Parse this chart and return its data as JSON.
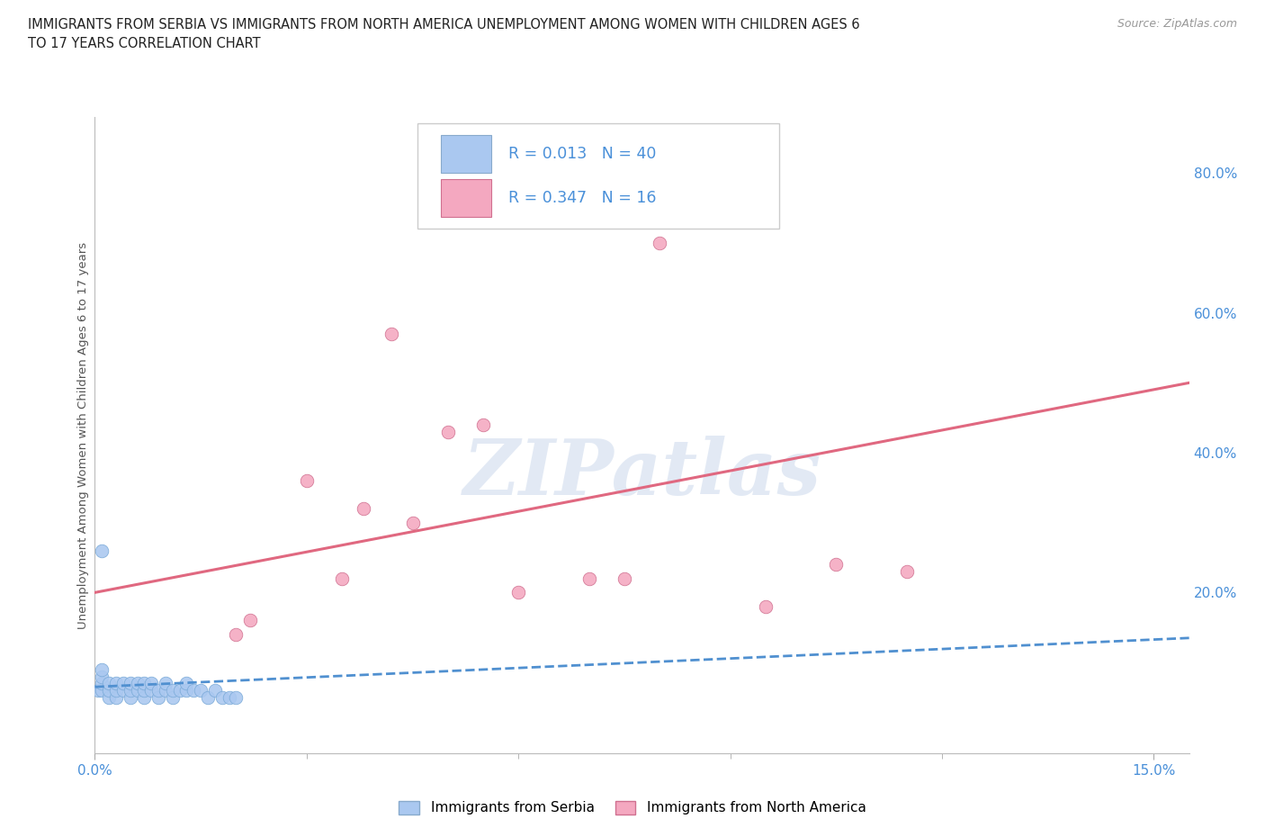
{
  "title_line1": "IMMIGRANTS FROM SERBIA VS IMMIGRANTS FROM NORTH AMERICA UNEMPLOYMENT AMONG WOMEN WITH CHILDREN AGES 6",
  "title_line2": "TO 17 YEARS CORRELATION CHART",
  "source": "Source: ZipAtlas.com",
  "ylabel": "Unemployment Among Women with Children Ages 6 to 17 years",
  "R_serbia": 0.013,
  "N_serbia": 40,
  "R_north_america": 0.347,
  "N_north_america": 16,
  "color_serbia": "#aac8f0",
  "color_north_america": "#f4a8c0",
  "color_trendline_serbia": "#5090d0",
  "color_trendline_north_america": "#e06880",
  "color_axis_text": "#4a90d9",
  "color_grid": "#c8d4e8",
  "xlim_min": 0.0,
  "xlim_max": 0.155,
  "ylim_min": -0.03,
  "ylim_max": 0.88,
  "yticks_right": [
    0.2,
    0.4,
    0.6,
    0.8
  ],
  "ytick_right_labels": [
    "20.0%",
    "40.0%",
    "60.0%",
    "80.0%"
  ],
  "watermark": "ZIPatlas",
  "background_color": "#ffffff",
  "serbia_x": [
    0.0005,
    0.001,
    0.001,
    0.001,
    0.001,
    0.002,
    0.002,
    0.002,
    0.003,
    0.003,
    0.003,
    0.004,
    0.004,
    0.005,
    0.005,
    0.005,
    0.006,
    0.006,
    0.007,
    0.007,
    0.007,
    0.008,
    0.008,
    0.009,
    0.009,
    0.01,
    0.01,
    0.011,
    0.011,
    0.012,
    0.013,
    0.013,
    0.014,
    0.015,
    0.016,
    0.017,
    0.018,
    0.019,
    0.02,
    0.001
  ],
  "serbia_y": [
    0.06,
    0.06,
    0.07,
    0.08,
    0.09,
    0.05,
    0.06,
    0.07,
    0.05,
    0.06,
    0.07,
    0.06,
    0.07,
    0.05,
    0.06,
    0.07,
    0.06,
    0.07,
    0.05,
    0.06,
    0.07,
    0.06,
    0.07,
    0.05,
    0.06,
    0.06,
    0.07,
    0.05,
    0.06,
    0.06,
    0.06,
    0.07,
    0.06,
    0.06,
    0.05,
    0.06,
    0.05,
    0.05,
    0.05,
    0.26
  ],
  "north_america_x": [
    0.02,
    0.022,
    0.03,
    0.035,
    0.038,
    0.042,
    0.045,
    0.05,
    0.055,
    0.06,
    0.07,
    0.075,
    0.08,
    0.095,
    0.105,
    0.115
  ],
  "north_america_y": [
    0.14,
    0.16,
    0.36,
    0.22,
    0.32,
    0.57,
    0.3,
    0.43,
    0.44,
    0.2,
    0.22,
    0.22,
    0.7,
    0.18,
    0.24,
    0.23
  ],
  "trendline_na_x0": 0.0,
  "trendline_na_y0": 0.2,
  "trendline_na_x1": 0.155,
  "trendline_na_y1": 0.5,
  "trendline_sb_x0": 0.0,
  "trendline_sb_y0": 0.065,
  "trendline_sb_x1": 0.155,
  "trendline_sb_y1": 0.135
}
